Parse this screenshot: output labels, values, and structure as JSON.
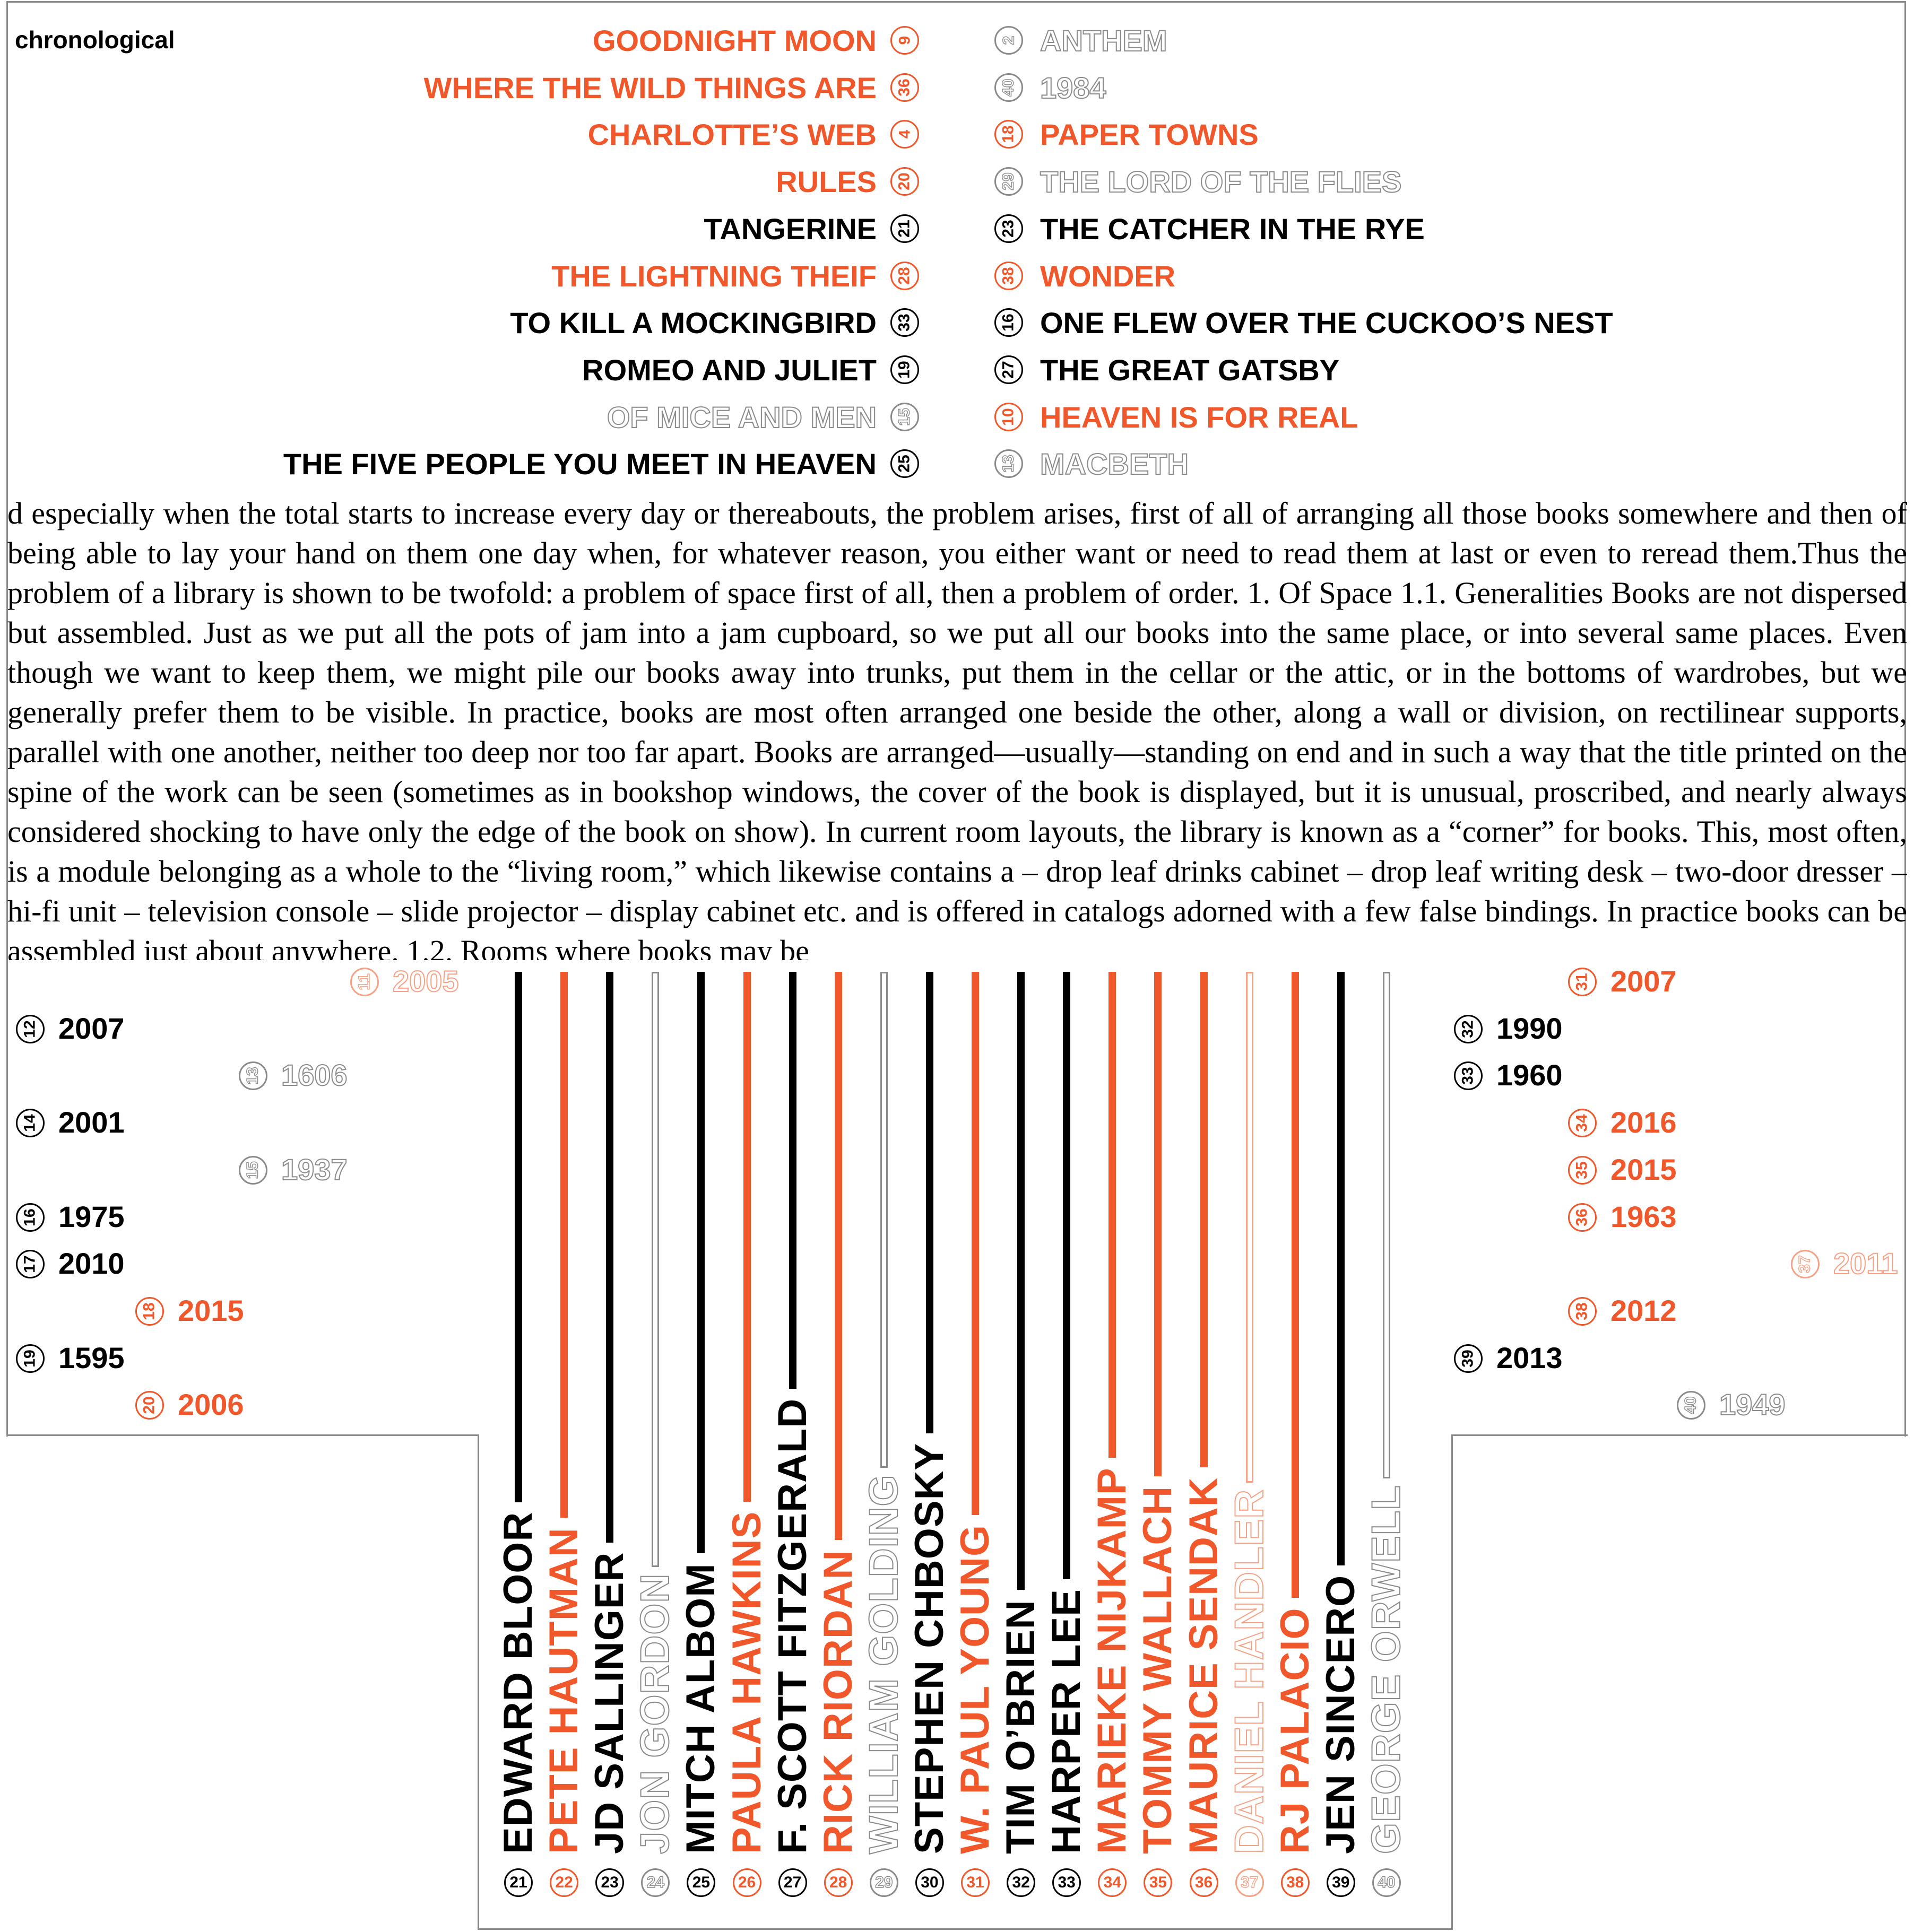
{
  "label": "chronological",
  "titles_left": [
    {
      "text": "GOODNIGHT MOON",
      "num": "9",
      "tone": "orange"
    },
    {
      "text": "WHERE THE WILD THINGS ARE",
      "num": "36",
      "tone": "orange"
    },
    {
      "text": "CHARLOTTE’S WEB",
      "num": "4",
      "tone": "orange"
    },
    {
      "text": "RULES",
      "num": "20",
      "tone": "orange"
    },
    {
      "text": "TANGERINE",
      "num": "21",
      "tone": "black"
    },
    {
      "text": "THE LIGHTNING THEIF",
      "num": "28",
      "tone": "orange"
    },
    {
      "text": "TO KILL A MOCKINGBIRD",
      "num": "33",
      "tone": "black"
    },
    {
      "text": "ROMEO AND JULIET",
      "num": "19",
      "tone": "black"
    },
    {
      "text": "OF MICE AND MEN",
      "num": "15",
      "tone": "gray"
    },
    {
      "text": "THE FIVE PEOPLE YOU MEET IN HEAVEN",
      "num": "25",
      "tone": "black"
    }
  ],
  "titles_right": [
    {
      "text": "ANTHEM",
      "num": "2",
      "tone": "gray"
    },
    {
      "text": "1984",
      "num": "40",
      "tone": "gray"
    },
    {
      "text": "PAPER TOWNS",
      "num": "18",
      "tone": "orange"
    },
    {
      "text": "THE LORD OF THE FLIES",
      "num": "29",
      "tone": "gray"
    },
    {
      "text": "THE CATCHER IN THE RYE",
      "num": "23",
      "tone": "black"
    },
    {
      "text": "WONDER",
      "num": "38",
      "tone": "orange"
    },
    {
      "text": "ONE FLEW OVER THE CUCKOO’S NEST",
      "num": "16",
      "tone": "black"
    },
    {
      "text": "THE GREAT GATSBY",
      "num": "27",
      "tone": "black"
    },
    {
      "text": "HEAVEN IS FOR REAL",
      "num": "10",
      "tone": "orange"
    },
    {
      "text": "MACBETH",
      "num": "13",
      "tone": "gray"
    }
  ],
  "paragraph": "d especially when the total starts to increase every day or thereabouts, the problem arises, first of all of arranging all those books somewhere and then of being able to lay your hand on them one day when, for whatever reason, you either want or need to read them at last or even to reread them.Thus the problem of a library is shown to be twofold: a problem of space first of all, then a problem of order. 1. Of Space 1.1. Generalities Books are not dispersed but assembled. Just as we put all the pots of jam into a jam cupboard, so we put all our books into the same place, or into several same places. Even though we want to keep them, we might pile our books away into trunks, put them in the cellar or the attic, or in the bottoms of wardrobes, but we generally prefer them to be visible. In practice, books are most often arranged one beside the other, along a wall or division, on rectilinear supports, parallel with one another, neither too deep nor too far apart. Books are arranged—usually—standing on end and in such a way that the title printed on the spine of the work can be seen (sometimes as in bookshop windows, the cover of the book is displayed, but it is unusual, proscribed, and nearly always considered shocking to have only the edge of the book on show). In current room layouts, the library is known as a “corner” for books. This, most often, is a module belonging as a whole to the “living room,” which likewise contains a – drop leaf drinks cabinet – drop leaf writing desk – two-door dresser – hi-fi unit – television console – slide projector – display cabinet etc. and is offered in catalogs adorned with a few false bindings. In practice books can be assembled just about anywhere. 1.2. Rooms where books may be",
  "years_left": [
    {
      "num": "11",
      "year": "2005",
      "tone": "peach"
    },
    {
      "num": "12",
      "year": "2007",
      "tone": "black"
    },
    {
      "num": "13",
      "year": "1606",
      "tone": "gray"
    },
    {
      "num": "14",
      "year": "2001",
      "tone": "black"
    },
    {
      "num": "15",
      "year": "1937",
      "tone": "gray"
    },
    {
      "num": "16",
      "year": "1975",
      "tone": "black"
    },
    {
      "num": "17",
      "year": "2010",
      "tone": "black"
    },
    {
      "num": "18",
      "year": "2015",
      "tone": "orange"
    },
    {
      "num": "19",
      "year": "1595",
      "tone": "black"
    },
    {
      "num": "20",
      "year": "2006",
      "tone": "orange"
    }
  ],
  "years_right": [
    {
      "num": "31",
      "year": "2007",
      "tone": "orange"
    },
    {
      "num": "32",
      "year": "1990",
      "tone": "black"
    },
    {
      "num": "33",
      "year": "1960",
      "tone": "black"
    },
    {
      "num": "34",
      "year": "2016",
      "tone": "orange"
    },
    {
      "num": "35",
      "year": "2015",
      "tone": "orange"
    },
    {
      "num": "36",
      "year": "1963",
      "tone": "orange"
    },
    {
      "num": "37",
      "year": "2011",
      "tone": "peach"
    },
    {
      "num": "38",
      "year": "2012",
      "tone": "orange"
    },
    {
      "num": "39",
      "year": "2013",
      "tone": "black"
    },
    {
      "num": "40",
      "year": "1949",
      "tone": "gray"
    }
  ],
  "authors": [
    {
      "name": "EDWARD BLOOR",
      "num": "21",
      "tone": "black"
    },
    {
      "name": "PETE HAUTMAN",
      "num": "22",
      "tone": "orange"
    },
    {
      "name": "JD SALLINGER",
      "num": "23",
      "tone": "black"
    },
    {
      "name": "JON GORDON",
      "num": "24",
      "tone": "gray"
    },
    {
      "name": "MITCH ALBOM",
      "num": "25",
      "tone": "black"
    },
    {
      "name": "PAULA HAWKINS",
      "num": "26",
      "tone": "orange"
    },
    {
      "name": "F. SCOTT FITZGERALD",
      "num": "27",
      "tone": "black"
    },
    {
      "name": "RICK RIORDAN",
      "num": "28",
      "tone": "orange"
    },
    {
      "name": "WILLIAM GOLDING",
      "num": "29",
      "tone": "gray"
    },
    {
      "name": "STEPHEN CHBOSKY",
      "num": "30",
      "tone": "black"
    },
    {
      "name": "W. PAUL YOUNG",
      "num": "31",
      "tone": "orange"
    },
    {
      "name": "TIM O’BRIEN",
      "num": "32",
      "tone": "black"
    },
    {
      "name": "HARPER LEE",
      "num": "33",
      "tone": "black"
    },
    {
      "name": "MARIEKE NIJKAMP",
      "num": "34",
      "tone": "orange"
    },
    {
      "name": "TOMMY WALLACH",
      "num": "35",
      "tone": "orange"
    },
    {
      "name": "MAURICE SENDAK",
      "num": "36",
      "tone": "orange"
    },
    {
      "name": "DANIEL HANDLER",
      "num": "37",
      "tone": "peach"
    },
    {
      "name": "RJ  PALACIO",
      "num": "38",
      "tone": "orange"
    },
    {
      "name": "JEN SINCERO",
      "num": "39",
      "tone": "black"
    },
    {
      "name": "GEORGE ORWELL",
      "num": "40",
      "tone": "gray"
    }
  ],
  "colors": {
    "orange": "#f0572a",
    "black": "#000000",
    "gray": "#8a8a8a",
    "peach": "#f6a184"
  }
}
